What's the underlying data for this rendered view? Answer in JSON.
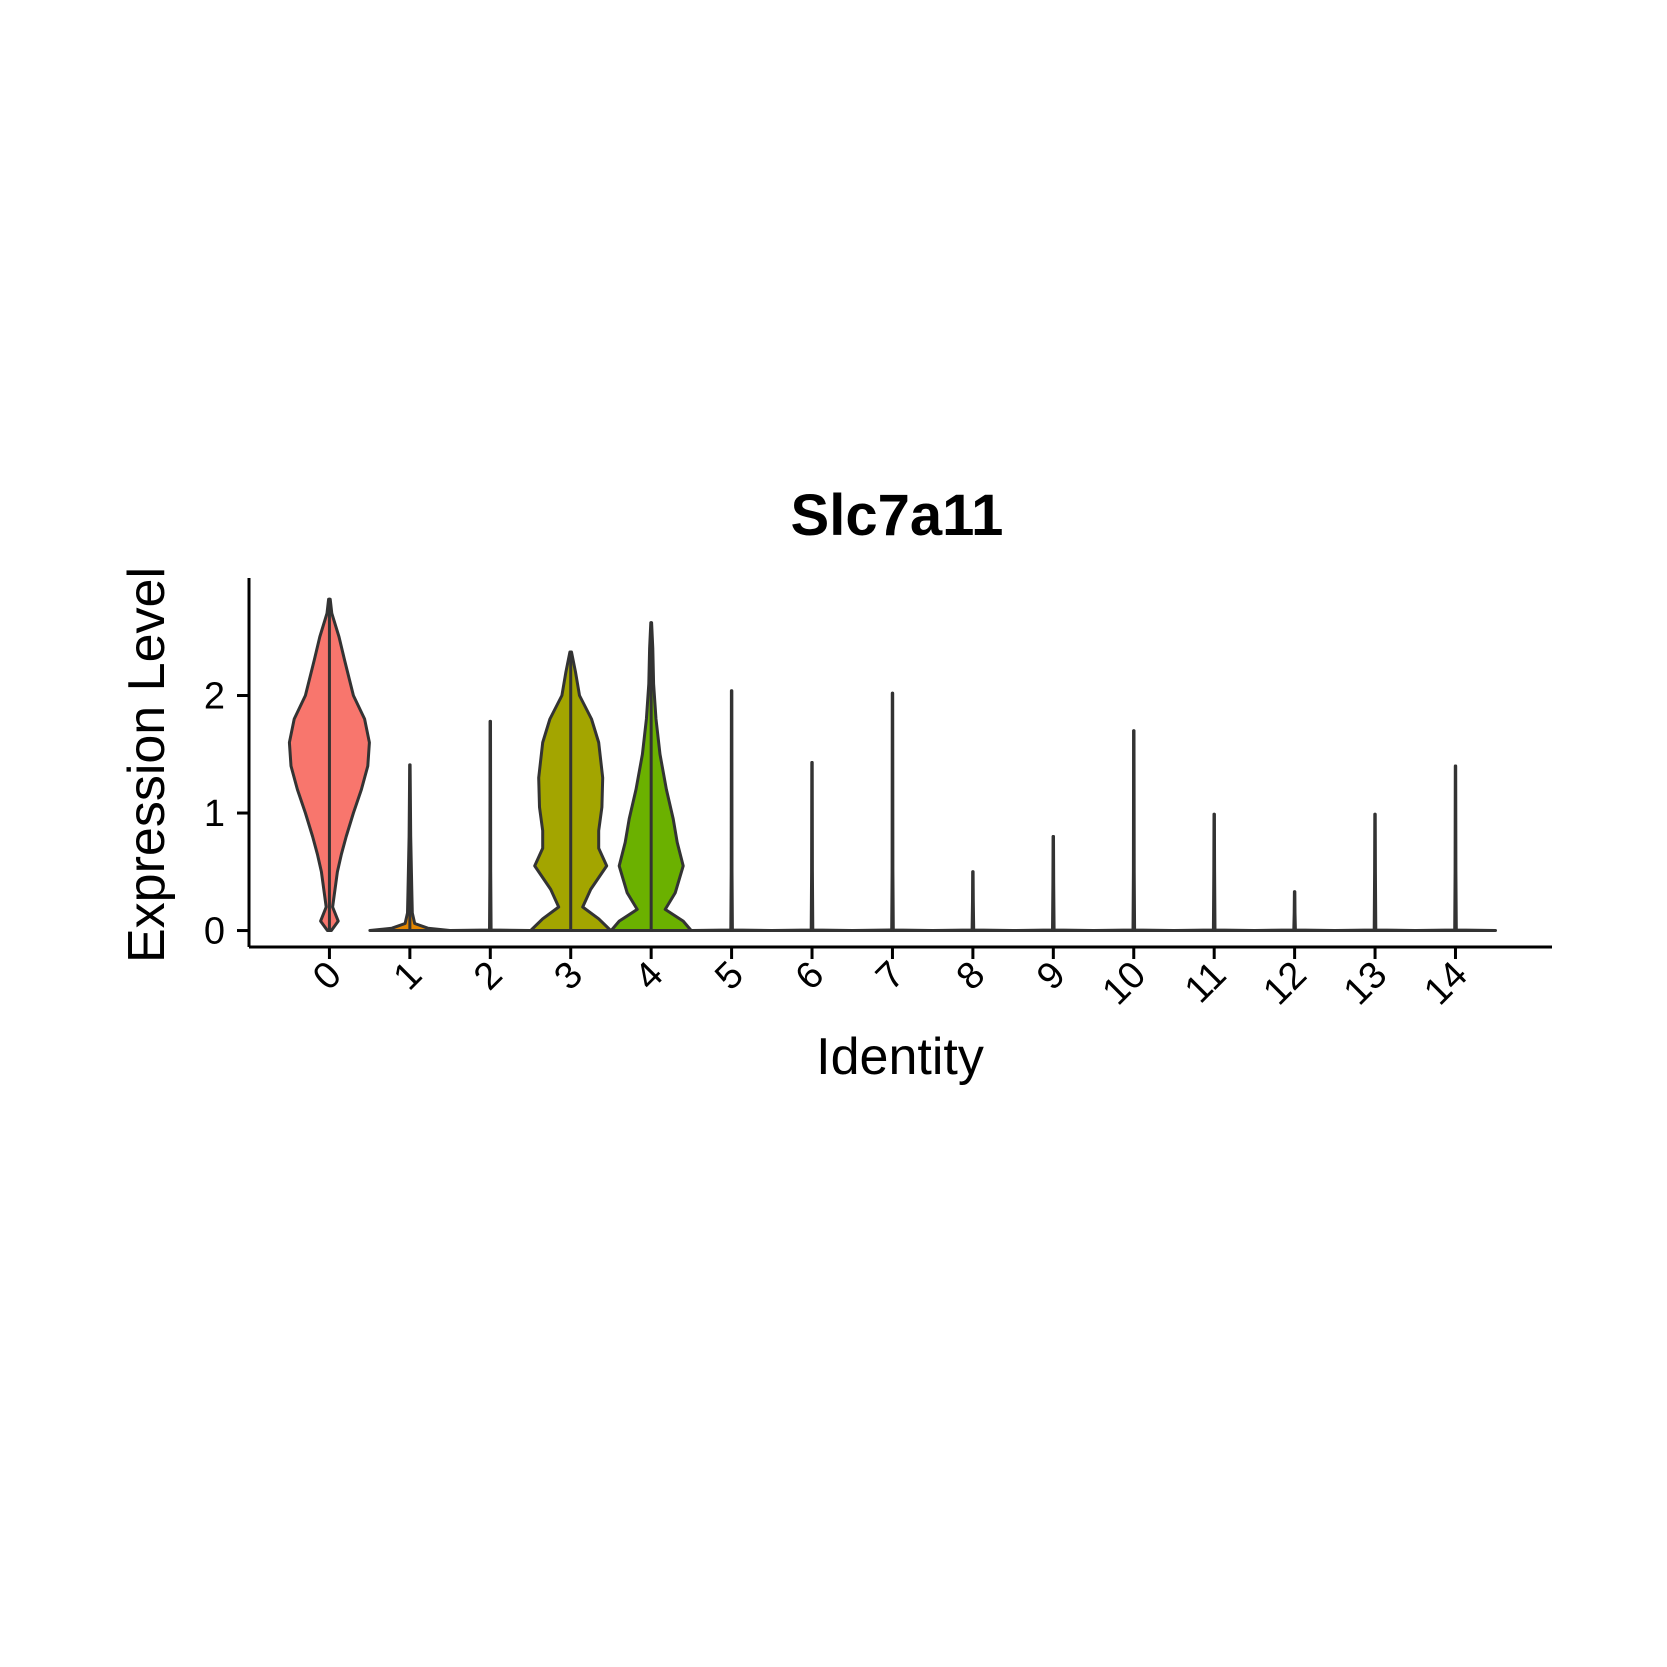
{
  "chart_data": {
    "type": "violin",
    "title": "Slc7a11",
    "xlabel": "Identity",
    "ylabel": "Expression Level",
    "ylim": [
      -0.14,
      3.0
    ],
    "yticks": [
      0,
      1,
      2
    ],
    "categories": [
      "0",
      "1",
      "2",
      "3",
      "4",
      "5",
      "6",
      "7",
      "8",
      "9",
      "10",
      "11",
      "12",
      "13",
      "14"
    ],
    "colors": [
      "#F8766D",
      "#E58700",
      "#C99800",
      "#A3A500",
      "#6BB100",
      "#00BA38",
      "#00BF7D",
      "#00C0AF",
      "#00BCD8",
      "#00B0F6",
      "#619CFF",
      "#B983FF",
      "#E76BF3",
      "#FD61D1",
      "#FF67A4"
    ],
    "outline_color": "#333333",
    "max_values": [
      2.82,
      1.41,
      1.78,
      2.37,
      2.62,
      2.04,
      1.43,
      2.02,
      0.5,
      0.8,
      1.7,
      0.99,
      0.33,
      0.99,
      1.4
    ],
    "violin_profiles": [
      [
        [
          0,
          0.05
        ],
        [
          0.08,
          0.22
        ],
        [
          0.2,
          0.08
        ],
        [
          0.35,
          0.14
        ],
        [
          0.5,
          0.2
        ],
        [
          0.65,
          0.3
        ],
        [
          0.8,
          0.42
        ],
        [
          1.0,
          0.6
        ],
        [
          1.2,
          0.8
        ],
        [
          1.4,
          0.96
        ],
        [
          1.6,
          1.0
        ],
        [
          1.8,
          0.88
        ],
        [
          2.0,
          0.6
        ],
        [
          2.3,
          0.38
        ],
        [
          2.5,
          0.24
        ],
        [
          2.7,
          0.06
        ],
        [
          2.82,
          0.02
        ]
      ],
      [
        [
          0,
          1.0
        ],
        [
          0.02,
          0.45
        ],
        [
          0.06,
          0.12
        ],
        [
          0.15,
          0.06
        ],
        [
          0.3,
          0.05
        ],
        [
          0.8,
          0.02
        ],
        [
          1.41,
          0.005
        ]
      ],
      [
        [
          0,
          1.0
        ],
        [
          0.005,
          0.02
        ],
        [
          0.5,
          0.01
        ],
        [
          1.78,
          0.005
        ]
      ],
      [
        [
          0,
          1.0
        ],
        [
          0.1,
          0.7
        ],
        [
          0.2,
          0.3
        ],
        [
          0.35,
          0.5
        ],
        [
          0.55,
          0.9
        ],
        [
          0.7,
          0.7
        ],
        [
          0.85,
          0.7
        ],
        [
          1.05,
          0.78
        ],
        [
          1.3,
          0.8
        ],
        [
          1.6,
          0.7
        ],
        [
          1.8,
          0.52
        ],
        [
          2.0,
          0.22
        ],
        [
          2.2,
          0.12
        ],
        [
          2.37,
          0.02
        ]
      ],
      [
        [
          0,
          1.0
        ],
        [
          0.08,
          0.8
        ],
        [
          0.18,
          0.35
        ],
        [
          0.32,
          0.6
        ],
        [
          0.55,
          0.8
        ],
        [
          0.75,
          0.65
        ],
        [
          0.95,
          0.55
        ],
        [
          1.2,
          0.38
        ],
        [
          1.5,
          0.22
        ],
        [
          1.8,
          0.12
        ],
        [
          2.1,
          0.06
        ],
        [
          2.4,
          0.04
        ],
        [
          2.62,
          0.01
        ]
      ],
      [
        [
          0,
          1.0
        ],
        [
          0.005,
          0.02
        ],
        [
          0.5,
          0.01
        ],
        [
          2.04,
          0.005
        ]
      ],
      [
        [
          0,
          1.0
        ],
        [
          0.005,
          0.02
        ],
        [
          0.5,
          0.01
        ],
        [
          1.43,
          0.005
        ]
      ],
      [
        [
          0,
          1.0
        ],
        [
          0.005,
          0.02
        ],
        [
          0.5,
          0.01
        ],
        [
          2.02,
          0.005
        ]
      ],
      [
        [
          0,
          1.0
        ],
        [
          0.005,
          0.02
        ],
        [
          0.25,
          0.01
        ],
        [
          0.5,
          0.005
        ]
      ],
      [
        [
          0,
          1.0
        ],
        [
          0.005,
          0.02
        ],
        [
          0.4,
          0.01
        ],
        [
          0.8,
          0.005
        ]
      ],
      [
        [
          0,
          1.0
        ],
        [
          0.005,
          0.02
        ],
        [
          0.5,
          0.01
        ],
        [
          1.7,
          0.005
        ]
      ],
      [
        [
          0,
          1.0
        ],
        [
          0.005,
          0.02
        ],
        [
          0.5,
          0.01
        ],
        [
          0.99,
          0.005
        ]
      ],
      [
        [
          0,
          1.0
        ],
        [
          0.005,
          0.02
        ],
        [
          0.15,
          0.01
        ],
        [
          0.33,
          0.005
        ]
      ],
      [
        [
          0,
          1.0
        ],
        [
          0.005,
          0.02
        ],
        [
          0.5,
          0.01
        ],
        [
          0.99,
          0.005
        ]
      ],
      [
        [
          0,
          1.0
        ],
        [
          0.005,
          0.02
        ],
        [
          0.5,
          0.01
        ],
        [
          1.4,
          0.005
        ]
      ]
    ],
    "grid": false,
    "legend": "none"
  }
}
